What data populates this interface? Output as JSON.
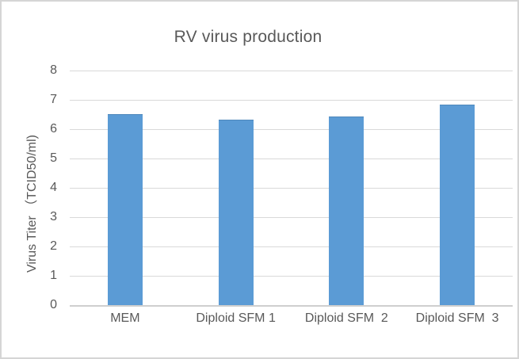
{
  "frame": {
    "background": "#ffffff",
    "border_color": "#d5d5d5"
  },
  "chart_data": {
    "type": "bar",
    "title": "RV virus production",
    "categories": [
      "MEM",
      "Diploid SFM 1",
      "Diploid SFM  2",
      "Diploid SFM  3"
    ],
    "values": [
      6.5,
      6.3,
      6.4,
      6.8
    ],
    "xlabel": "",
    "ylabel": "Virus Titer （TCID50/ml)",
    "ylim": [
      0,
      8
    ],
    "yticks": [
      0,
      1,
      2,
      3,
      4,
      5,
      6,
      7,
      8
    ],
    "grid": true,
    "legend_position": "none",
    "colors": {
      "bar": "#5b9bd5",
      "gridline": "#d9d9d9",
      "axis_line": "#cfcfcf",
      "text": "#595959"
    }
  }
}
